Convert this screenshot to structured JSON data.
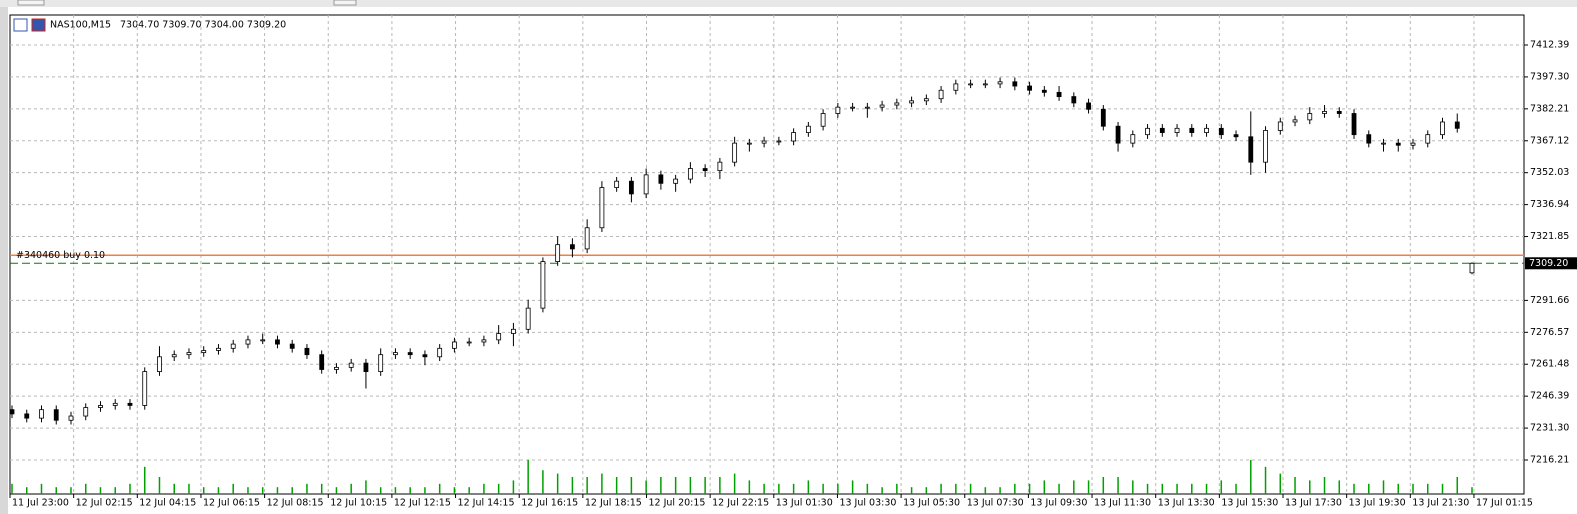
{
  "chart_data": {
    "type": "candlestick",
    "symbol": "NAS100,M15",
    "ohlc_text": "7304.70 7309.70 7304.00 7309.20",
    "candles": [
      [
        7240,
        7242,
        7236,
        7238
      ],
      [
        7238,
        7240,
        7234,
        7236
      ],
      [
        7236,
        7242,
        7234,
        7240
      ],
      [
        7240,
        7242,
        7233,
        7235
      ],
      [
        7235,
        7239,
        7233,
        7237
      ],
      [
        7237,
        7243,
        7235,
        7241
      ],
      [
        7241,
        7244,
        7239,
        7242
      ],
      [
        7242,
        7245,
        7240,
        7243
      ],
      [
        7243,
        7245,
        7240,
        7242
      ],
      [
        7242,
        7260,
        7240,
        7258
      ],
      [
        7258,
        7270,
        7256,
        7265
      ],
      [
        7265,
        7268,
        7263,
        7266
      ],
      [
        7266,
        7269,
        7264,
        7267
      ],
      [
        7267,
        7270,
        7265,
        7268
      ],
      [
        7268,
        7271,
        7266,
        7269
      ],
      [
        7269,
        7273,
        7267,
        7271
      ],
      [
        7271,
        7275,
        7269,
        7273
      ],
      [
        7273,
        7276,
        7271,
        7273
      ],
      [
        7273,
        7275,
        7269,
        7271
      ],
      [
        7271,
        7273,
        7267,
        7269
      ],
      [
        7269,
        7271,
        7264,
        7266
      ],
      [
        7266,
        7268,
        7257,
        7259
      ],
      [
        7259,
        7262,
        7257,
        7260
      ],
      [
        7260,
        7264,
        7258,
        7262
      ],
      [
        7262,
        7264,
        7250,
        7258
      ],
      [
        7258,
        7269,
        7256,
        7266
      ],
      [
        7266,
        7269,
        7264,
        7267
      ],
      [
        7267,
        7269,
        7264,
        7266
      ],
      [
        7266,
        7268,
        7261,
        7265
      ],
      [
        7265,
        7271,
        7263,
        7269
      ],
      [
        7269,
        7274,
        7267,
        7272
      ],
      [
        7272,
        7274,
        7270,
        7272
      ],
      [
        7272,
        7275,
        7270,
        7273
      ],
      [
        7273,
        7280,
        7271,
        7276
      ],
      [
        7276,
        7281,
        7270,
        7278
      ],
      [
        7278,
        7292,
        7276,
        7288
      ],
      [
        7288,
        7312,
        7286,
        7310
      ],
      [
        7310,
        7322,
        7308,
        7318
      ],
      [
        7318,
        7321,
        7312,
        7316
      ],
      [
        7316,
        7330,
        7314,
        7326
      ],
      [
        7326,
        7348,
        7324,
        7345
      ],
      [
        7345,
        7350,
        7343,
        7348
      ],
      [
        7348,
        7350,
        7338,
        7342
      ],
      [
        7342,
        7354,
        7340,
        7351
      ],
      [
        7351,
        7353,
        7344,
        7347
      ],
      [
        7347,
        7351,
        7343,
        7349
      ],
      [
        7349,
        7357,
        7347,
        7354
      ],
      [
        7354,
        7356,
        7350,
        7353
      ],
      [
        7353,
        7359,
        7349,
        7357
      ],
      [
        7357,
        7369,
        7355,
        7366
      ],
      [
        7366,
        7368,
        7362,
        7366
      ],
      [
        7366,
        7369,
        7364,
        7367
      ],
      [
        7367,
        7369,
        7365,
        7367
      ],
      [
        7367,
        7373,
        7365,
        7371
      ],
      [
        7371,
        7376,
        7369,
        7374
      ],
      [
        7374,
        7382,
        7372,
        7380
      ],
      [
        7380,
        7385,
        7378,
        7383
      ],
      [
        7383,
        7385,
        7381,
        7383
      ],
      [
        7383,
        7385,
        7378,
        7383
      ],
      [
        7383,
        7386,
        7381,
        7384
      ],
      [
        7384,
        7387,
        7382,
        7385
      ],
      [
        7385,
        7388,
        7383,
        7386
      ],
      [
        7386,
        7389,
        7384,
        7387
      ],
      [
        7387,
        7393,
        7385,
        7391
      ],
      [
        7391,
        7396,
        7389,
        7394
      ],
      [
        7394,
        7396,
        7392,
        7394
      ],
      [
        7394,
        7396,
        7392,
        7394
      ],
      [
        7394,
        7397,
        7392,
        7395
      ],
      [
        7395,
        7397,
        7391,
        7393
      ],
      [
        7393,
        7395,
        7389,
        7391
      ],
      [
        7391,
        7393,
        7388,
        7390
      ],
      [
        7390,
        7393,
        7386,
        7388
      ],
      [
        7388,
        7390,
        7383,
        7385
      ],
      [
        7385,
        7387,
        7380,
        7382
      ],
      [
        7382,
        7384,
        7372,
        7374
      ],
      [
        7374,
        7376,
        7362,
        7366
      ],
      [
        7366,
        7372,
        7364,
        7370
      ],
      [
        7370,
        7375,
        7368,
        7373
      ],
      [
        7373,
        7375,
        7369,
        7371
      ],
      [
        7371,
        7375,
        7369,
        7373
      ],
      [
        7373,
        7375,
        7369,
        7371
      ],
      [
        7371,
        7375,
        7369,
        7373
      ],
      [
        7373,
        7375,
        7368,
        7370
      ],
      [
        7370,
        7372,
        7367,
        7369
      ],
      [
        7369,
        7381,
        7351,
        7357
      ],
      [
        7357,
        7374,
        7352,
        7372
      ],
      [
        7372,
        7378,
        7370,
        7376
      ],
      [
        7376,
        7379,
        7374,
        7377
      ],
      [
        7377,
        7383,
        7375,
        7380
      ],
      [
        7380,
        7384,
        7378,
        7381
      ],
      [
        7381,
        7383,
        7378,
        7380
      ],
      [
        7380,
        7382,
        7368,
        7370
      ],
      [
        7370,
        7372,
        7364,
        7366
      ],
      [
        7366,
        7368,
        7362,
        7366
      ],
      [
        7366,
        7368,
        7362,
        7365
      ],
      [
        7365,
        7368,
        7363,
        7366
      ],
      [
        7366,
        7372,
        7364,
        7370
      ],
      [
        7370,
        7378,
        7368,
        7376
      ],
      [
        7376,
        7380,
        7371,
        7373
      ],
      [
        7304.7,
        7309.7,
        7304,
        7309.2
      ]
    ],
    "volumes": [
      3,
      2,
      3,
      2,
      2,
      3,
      2,
      2,
      3,
      8,
      5,
      3,
      3,
      2,
      2,
      3,
      2,
      2,
      2,
      2,
      3,
      3,
      2,
      3,
      4,
      2,
      2,
      2,
      2,
      3,
      2,
      2,
      3,
      3,
      4,
      10,
      7,
      6,
      5,
      5,
      6,
      5,
      5,
      4,
      5,
      5,
      5,
      5,
      5,
      6,
      4,
      3,
      3,
      3,
      4,
      3,
      3,
      4,
      3,
      2,
      3,
      2,
      2,
      3,
      3,
      3,
      2,
      2,
      3,
      3,
      4,
      3,
      4,
      4,
      5,
      5,
      4,
      3,
      3,
      3,
      3,
      3,
      4,
      3,
      10,
      8,
      6,
      5,
      4,
      5,
      4,
      3,
      3,
      4,
      3,
      3,
      3,
      3,
      5,
      2
    ],
    "up_color": "#ffffff",
    "down_color": "#000000",
    "volume_color": "#00a000",
    "ylim": [
      7200.14,
      7426.57
    ],
    "yticks": [
      7412.39,
      {
        "value": 7397.3,
        "label": "7397.30"
      },
      7382.21,
      7367.12,
      7352.03,
      7336.94,
      7321.85,
      7291.66,
      7276.57,
      7261.48,
      7246.39,
      {
        "value": 7231.3,
        "label": "7231.30"
      },
      7216.21
    ],
    "x_labels": [
      "11 Jul 23:00",
      "12 Jul 02:15",
      "12 Jul 04:15",
      "12 Jul 06:15",
      "12 Jul 08:15",
      "12 Jul 10:15",
      "12 Jul 12:15",
      "12 Jul 14:15",
      "12 Jul 16:15",
      "12 Jul 18:15",
      "12 Jul 20:15",
      "12 Jul 22:15",
      "13 Jul 01:30",
      "13 Jul 03:30",
      "13 Jul 05:30",
      "13 Jul 07:30",
      "13 Jul 09:30",
      "13 Jul 11:30",
      "13 Jul 13:30",
      "13 Jul 15:30",
      "13 Jul 17:30",
      "13 Jul 19:30",
      "13 Jul 21:30",
      "17 Jul 01:15"
    ],
    "order": {
      "label": "#340460 buy 0.10",
      "price": 7313,
      "color": "#f08040"
    },
    "bid": {
      "value": 7309.2,
      "label": "7309.20",
      "color": "#008000"
    },
    "grid": true
  }
}
